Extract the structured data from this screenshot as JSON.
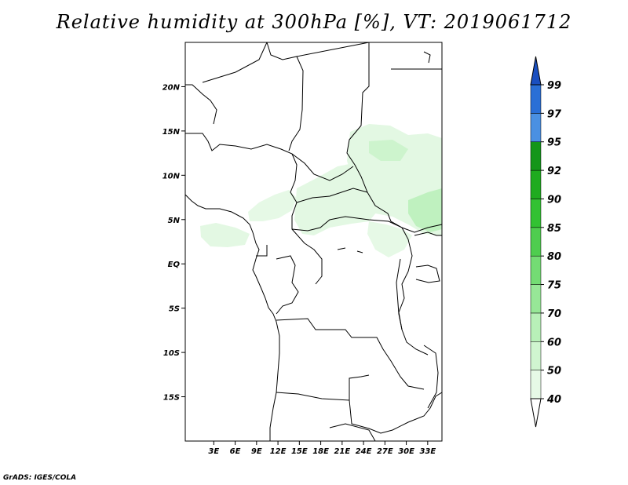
{
  "title": "Relative humidity at 300hPa [%], VT: 2019061712",
  "credit": "GrADS: IGES/COLA",
  "map": {
    "lat_range": [
      -20,
      25
    ],
    "lon_range": [
      -1,
      35
    ],
    "lat_ticks": [
      {
        "value": 20,
        "label": "20N"
      },
      {
        "value": 15,
        "label": "15N"
      },
      {
        "value": 10,
        "label": "10N"
      },
      {
        "value": 5,
        "label": "5N"
      },
      {
        "value": 0,
        "label": "EQ"
      },
      {
        "value": -5,
        "label": "5S"
      },
      {
        "value": -10,
        "label": "10S"
      },
      {
        "value": -15,
        "label": "15S"
      }
    ],
    "lon_ticks": [
      {
        "value": 3,
        "label": "3E"
      },
      {
        "value": 6,
        "label": "6E"
      },
      {
        "value": 9,
        "label": "9E"
      },
      {
        "value": 12,
        "label": "12E"
      },
      {
        "value": 15,
        "label": "15E"
      },
      {
        "value": 18,
        "label": "18E"
      },
      {
        "value": 21,
        "label": "21E"
      },
      {
        "value": 24,
        "label": "24E"
      },
      {
        "value": 27,
        "label": "27E"
      },
      {
        "value": 30,
        "label": "30E"
      },
      {
        "value": 33,
        "label": "33E"
      }
    ]
  },
  "colorbar": {
    "levels": [
      "40",
      "50",
      "60",
      "70",
      "75",
      "80",
      "85",
      "90",
      "92",
      "95",
      "97",
      "99"
    ],
    "colors": [
      "#ffffff",
      "#e6f9e6",
      "#d0f5d0",
      "#b8f0b8",
      "#97e797",
      "#74dc74",
      "#4fcd4f",
      "#33c233",
      "#1fab1f",
      "#14961a",
      "#4a90e2",
      "#2a6fd6",
      "#1a4fc0"
    ]
  }
}
